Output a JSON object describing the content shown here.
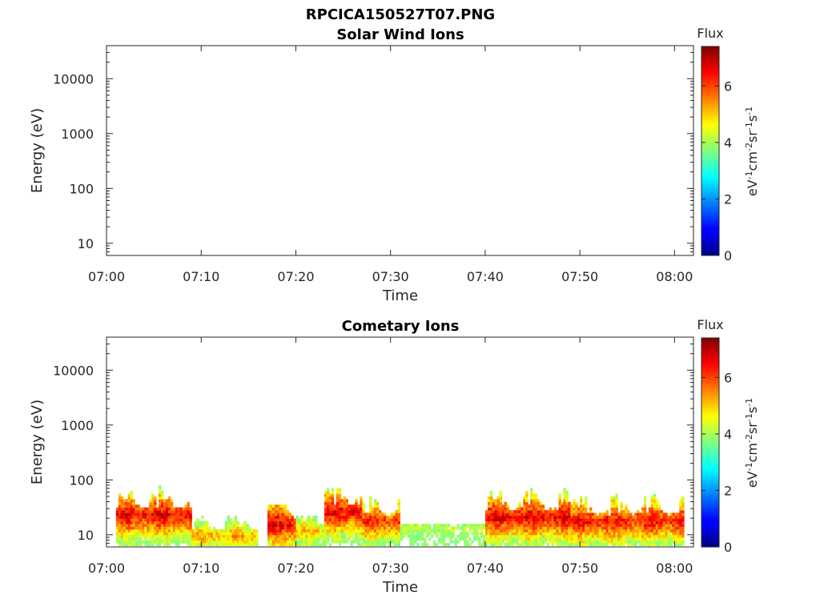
{
  "figure": {
    "filename": "RPCICA150527T07.PNG"
  },
  "chart_data": [
    {
      "type": "heatmap",
      "title": "Solar Wind Ions",
      "xlabel": "Time",
      "ylabel": "Energy (eV)",
      "yscale": "log",
      "xlim": [
        "07:00",
        "08:02"
      ],
      "ylim": [
        6,
        40000
      ],
      "x_ticks": [
        "07:00",
        "07:10",
        "07:20",
        "07:30",
        "07:40",
        "07:50",
        "08:00"
      ],
      "y_ticks": [
        10,
        100,
        1000,
        10000
      ],
      "y_tick_labels": [
        "10",
        "100",
        "1000",
        "10000"
      ],
      "colorbar": {
        "title": "Flux",
        "label": "eV-1cm-2sr-1s-1",
        "label_parts": [
          {
            "t": "eV",
            "sup": false
          },
          {
            "t": "-1",
            "sup": true
          },
          {
            "t": "cm",
            "sup": false
          },
          {
            "t": "-2",
            "sup": true
          },
          {
            "t": "sr",
            "sup": false
          },
          {
            "t": "-1",
            "sup": true
          },
          {
            "t": "s",
            "sup": false
          },
          {
            "t": "-1",
            "sup": true
          }
        ],
        "range": [
          0,
          7.4
        ],
        "ticks": [
          "0",
          "2",
          "4",
          "6"
        ],
        "colormap": "jet"
      },
      "segments": []
    },
    {
      "type": "heatmap",
      "title": "Cometary Ions",
      "xlabel": "Time",
      "ylabel": "Energy (eV)",
      "yscale": "log",
      "xlim": [
        "07:00",
        "08:02"
      ],
      "ylim": [
        6,
        40000
      ],
      "x_ticks": [
        "07:00",
        "07:10",
        "07:20",
        "07:30",
        "07:40",
        "07:50",
        "08:00"
      ],
      "y_ticks": [
        10,
        100,
        1000,
        10000
      ],
      "y_tick_labels": [
        "10",
        "100",
        "1000",
        "10000"
      ],
      "colorbar": {
        "title": "Flux",
        "label": "eV-1cm-2sr-1s-1",
        "label_parts": [
          {
            "t": "eV",
            "sup": false
          },
          {
            "t": "-1",
            "sup": true
          },
          {
            "t": "cm",
            "sup": false
          },
          {
            "t": "-2",
            "sup": true
          },
          {
            "t": "sr",
            "sup": false
          },
          {
            "t": "-1",
            "sup": true
          },
          {
            "t": "s",
            "sup": false
          },
          {
            "t": "-1",
            "sup": true
          }
        ],
        "range": [
          0,
          7.4
        ],
        "ticks": [
          "0",
          "2",
          "4",
          "6"
        ],
        "colormap": "jet"
      },
      "segments": [
        {
          "start": "07:01",
          "end": "07:09",
          "emax": 80,
          "epeak": 22,
          "peak": 7.0
        },
        {
          "start": "07:09",
          "end": "07:16",
          "emax": 20,
          "epeak": 9,
          "peak": 5.6
        },
        {
          "start": "07:17",
          "end": "07:20",
          "emax": 35,
          "epeak": 15,
          "peak": 7.0
        },
        {
          "start": "07:20",
          "end": "07:23",
          "emax": 20,
          "epeak": 11,
          "peak": 5.5
        },
        {
          "start": "07:23",
          "end": "07:27",
          "emax": 70,
          "epeak": 25,
          "peak": 7.0
        },
        {
          "start": "07:27",
          "end": "07:31",
          "emax": 70,
          "epeak": 17,
          "peak": 6.6
        },
        {
          "start": "07:31",
          "end": "07:40",
          "emax": 15,
          "epeak": 12,
          "peak": 4.5
        },
        {
          "start": "07:40",
          "end": "07:49",
          "emax": 80,
          "epeak": 20,
          "peak": 7.0
        },
        {
          "start": "07:49",
          "end": "08:01",
          "emax": 80,
          "epeak": 17,
          "peak": 6.8
        }
      ]
    }
  ]
}
